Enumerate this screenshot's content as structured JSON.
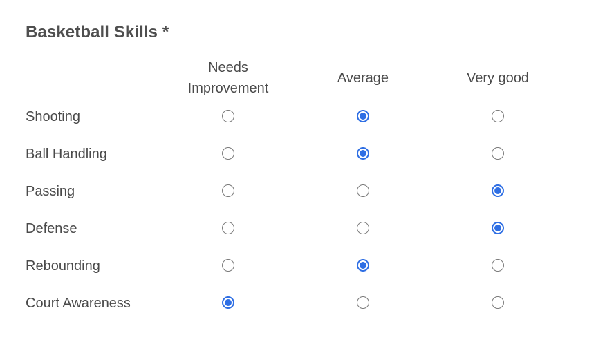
{
  "question": {
    "title": "Basketball Skills *"
  },
  "columns": [
    {
      "line1": "Needs",
      "line2": "Improvement"
    },
    {
      "line1": "Average",
      "line2": ""
    },
    {
      "line1": "Very good",
      "line2": ""
    }
  ],
  "rows": [
    {
      "label": "Shooting",
      "selected": 1
    },
    {
      "label": "Ball Handling",
      "selected": 1
    },
    {
      "label": "Passing",
      "selected": 2
    },
    {
      "label": "Defense",
      "selected": 2
    },
    {
      "label": "Rebounding",
      "selected": 1
    },
    {
      "label": "Court Awareness",
      "selected": 0
    }
  ],
  "colors": {
    "accent": "#2f6fe4",
    "text": "#4a4a4a",
    "radio_border": "#7a7a7a"
  }
}
